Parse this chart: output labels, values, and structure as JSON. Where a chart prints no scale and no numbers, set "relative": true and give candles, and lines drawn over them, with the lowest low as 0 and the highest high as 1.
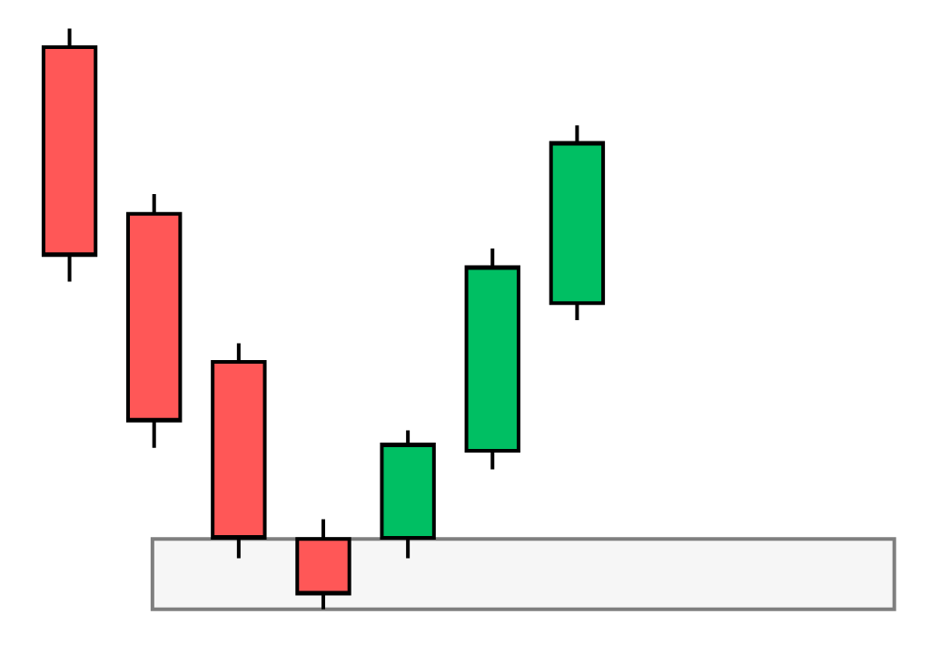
{
  "chart_data": {
    "type": "candlestick",
    "relative": true,
    "categories": [
      null,
      null,
      null,
      null,
      null,
      null,
      null
    ],
    "ohlc": [
      [
        0.968,
        1,
        0.564,
        0.61
      ],
      [
        0.681,
        0.715,
        0.278,
        0.325
      ],
      [
        0.426,
        0.458,
        0.088,
        0.123
      ],
      [
        0.121,
        0.155,
        0,
        0.027
      ],
      [
        0.123,
        0.308,
        0.088,
        0.284
      ],
      [
        0.273,
        0.621,
        0.241,
        0.589
      ],
      [
        0.527,
        0.833,
        0.498,
        0.803
      ]
    ],
    "colors": [
      "#ff5757",
      "#ff5757",
      "#ff5757",
      "#ff5757",
      "#00bf63",
      "#00bf63",
      "#00bf63"
    ],
    "bands": [
      {
        "axis": "y",
        "from": 0,
        "to": 0.121,
        "color": "#7f7f7f"
      }
    ]
  }
}
